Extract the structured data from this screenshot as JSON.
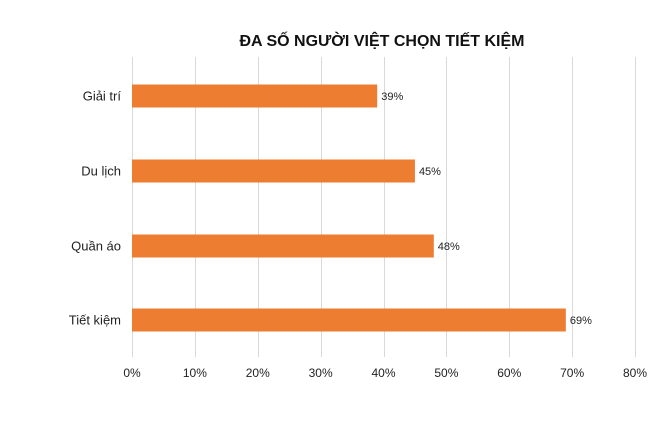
{
  "chart_data": {
    "type": "bar",
    "orientation": "horizontal",
    "title": "ĐA SỐ NGƯỜI VIỆT CHỌN TIẾT KIỆM",
    "categories": [
      "Giải trí",
      "Du lịch",
      "Quần áo",
      "Tiết kiệm"
    ],
    "values": [
      39,
      45,
      48,
      69
    ],
    "data_labels": [
      "39%",
      "45%",
      "48%",
      "69%"
    ],
    "xlim": [
      0,
      80
    ],
    "x_ticks": [
      0,
      10,
      20,
      30,
      40,
      50,
      60,
      70,
      80
    ],
    "x_tick_labels": [
      "0%",
      "10%",
      "20%",
      "30%",
      "40%",
      "50%",
      "60%",
      "70%",
      "80%"
    ],
    "xlabel": "",
    "ylabel": "",
    "grid": "vertical",
    "legend": "none",
    "bar_color": "#ED7D31"
  }
}
